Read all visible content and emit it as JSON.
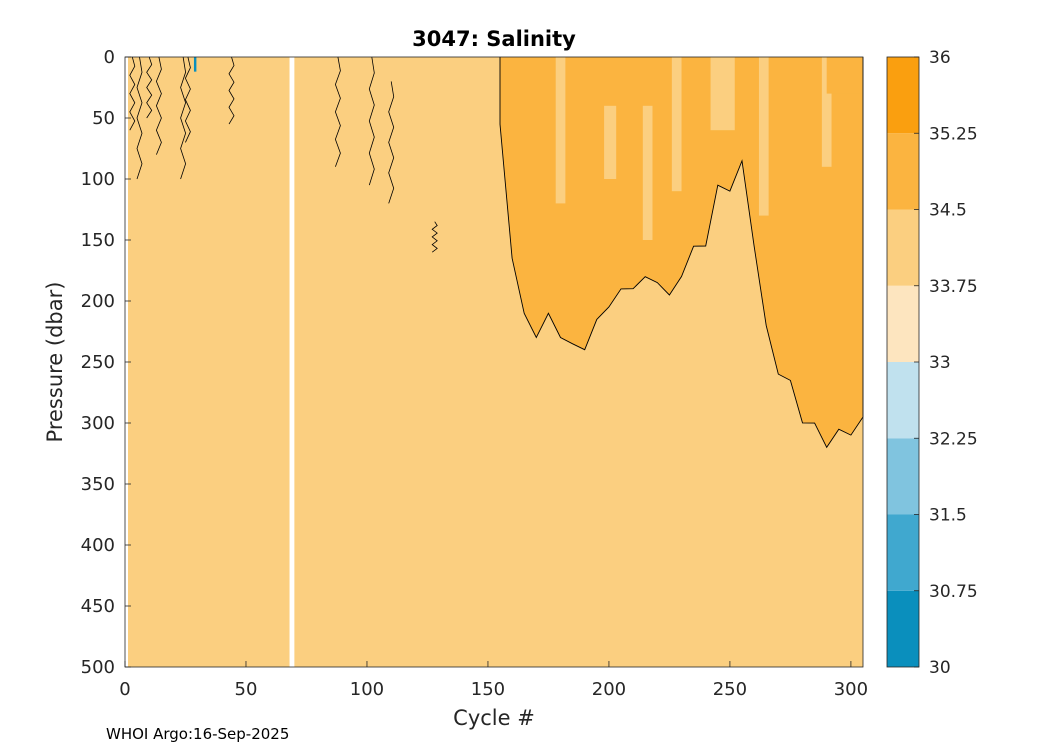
{
  "chart_data": {
    "type": "heatmap",
    "title": "3047:  Salinity",
    "xlabel": "Cycle #",
    "ylabel": "Pressure (dbar)",
    "xlim": [
      0,
      305
    ],
    "ylim": [
      500,
      0
    ],
    "x_ticks": [
      "0",
      "50",
      "100",
      "150",
      "200",
      "250",
      "300"
    ],
    "y_ticks": [
      "0",
      "50",
      "100",
      "150",
      "200",
      "250",
      "300",
      "350",
      "400",
      "450",
      "500"
    ],
    "colorbar": {
      "levels": [
        30,
        30.75,
        31.5,
        32.25,
        33,
        33.75,
        34.5,
        35.25,
        36
      ],
      "labels": [
        "30",
        "30.75",
        "31.5",
        "32.25",
        "33",
        "33.75",
        "34.5",
        "35.25",
        "36"
      ],
      "colors": [
        "#0a8fbd",
        "#40a8cf",
        "#80c4df",
        "#c0e1ee",
        "#fde5bf",
        "#fbcf80",
        "#fbb440",
        "#fa9f0f"
      ]
    },
    "field": {
      "background_level": "33.75-34.5",
      "high_salinity_level": "34.5-35.25",
      "data_gap_cycles": [
        68,
        70
      ],
      "high_salinity_depth_profile": {
        "cycles": [
          155,
          160,
          165,
          170,
          175,
          180,
          185,
          190,
          195,
          200,
          205,
          210,
          215,
          220,
          225,
          230,
          235,
          240,
          245,
          250,
          255,
          260,
          265,
          270,
          275,
          280,
          285,
          290,
          295,
          300,
          305
        ],
        "depth": [
          60,
          160,
          215,
          225,
          215,
          225,
          240,
          235,
          220,
          200,
          195,
          185,
          185,
          180,
          200,
          175,
          160,
          150,
          110,
          105,
          90,
          150,
          225,
          255,
          270,
          295,
          305,
          315,
          310,
          305,
          300
        ]
      }
    }
  },
  "footer": "WHOI Argo:16-Sep-2025"
}
